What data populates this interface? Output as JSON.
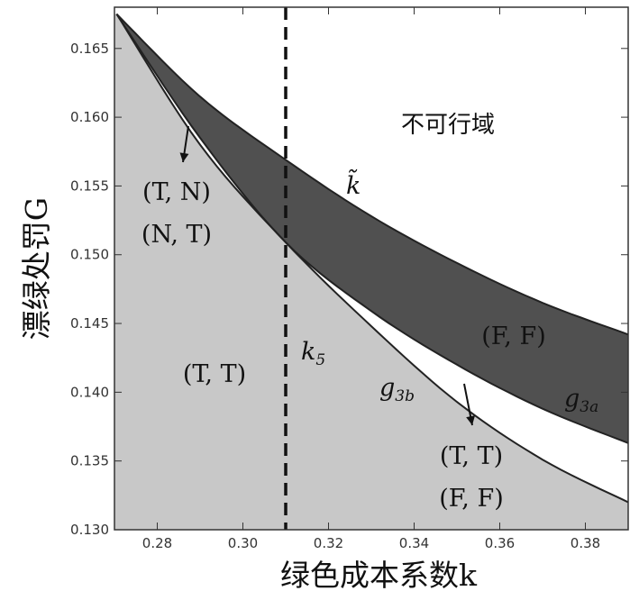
{
  "chart_data": {
    "type": "area",
    "xlim": [
      0.27,
      0.39
    ],
    "ylim": [
      0.13,
      0.168
    ],
    "x_ticks": [
      "0.28",
      "0.30",
      "0.32",
      "0.34",
      "0.36",
      "0.38"
    ],
    "y_ticks": [
      "0.130",
      "0.135",
      "0.140",
      "0.145",
      "0.150",
      "0.155",
      "0.160",
      "0.165"
    ],
    "xlabel": "绿色成本系数k",
    "ylabel": "漂绿处罚G",
    "vertical_line": {
      "x": 0.31,
      "label": "k5",
      "style": "dashed"
    },
    "curves": [
      {
        "name": "k̃",
        "x": [
          0.2705,
          0.29,
          0.31,
          0.33,
          0.35,
          0.37,
          0.39
        ],
        "y": [
          0.1675,
          0.1615,
          0.1569,
          0.1528,
          0.1494,
          0.1465,
          0.1442
        ]
      },
      {
        "name": "g3a",
        "x": [
          0.2705,
          0.29,
          0.31,
          0.33,
          0.35,
          0.37,
          0.39
        ],
        "y": [
          0.1675,
          0.1585,
          0.1509,
          0.1459,
          0.142,
          0.1388,
          0.1363
        ]
      },
      {
        "name": "g3b",
        "x": [
          0.2705,
          0.29,
          0.31,
          0.33,
          0.35,
          0.37,
          0.39
        ],
        "y": [
          0.1675,
          0.158,
          0.1509,
          0.1448,
          0.1393,
          0.1351,
          0.132
        ]
      }
    ],
    "regions": {
      "infeasible": "不可行域",
      "ff_dark": "(F, F)",
      "tt_left": "(T, T)",
      "tn_line1": "(T, N)",
      "tn_line2": "(N, T)",
      "tt_lower_line1": "(T, T)",
      "tt_lower_line2": "(F, F)"
    },
    "colors": {
      "dark_band": "#505050",
      "light_region": "#c8c8c8",
      "background": "#ffffff",
      "curve": "#222222"
    }
  }
}
